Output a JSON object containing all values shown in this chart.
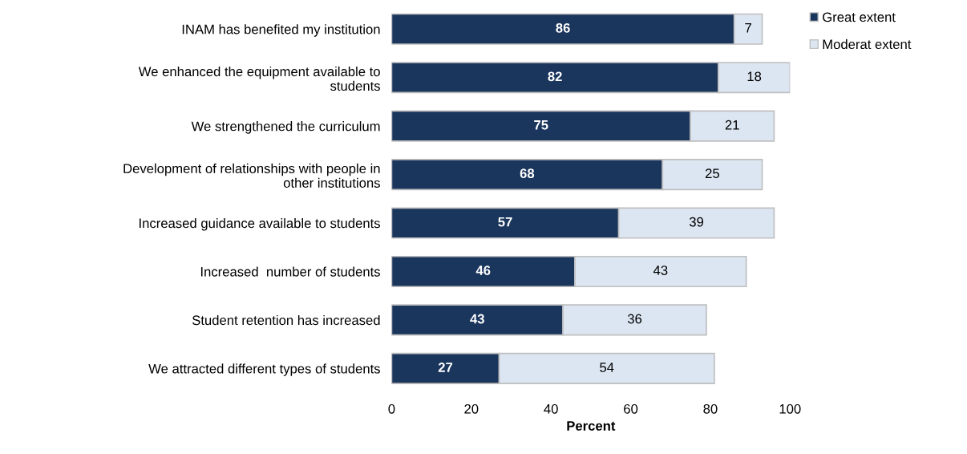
{
  "chart_data": {
    "type": "bar",
    "orientation": "horizontal",
    "stacked": true,
    "xlabel": "Percent",
    "categories": [
      "INAM has benefited my institution",
      "We enhanced the equipment available to students",
      "We strengthened the curriculum",
      "Development of relationships with people in other institutions",
      "Increased guidance available to students",
      "Increased  number of students",
      "Student retention has increased",
      "We attracted different types of students"
    ],
    "series": [
      {
        "name": "Great extent",
        "color": "#1b365d",
        "values": [
          86,
          82,
          75,
          68,
          57,
          46,
          43,
          27
        ]
      },
      {
        "name": "Moderat extent",
        "color": "#dce6f2",
        "values": [
          7,
          18,
          21,
          25,
          39,
          43,
          36,
          54
        ]
      }
    ],
    "xlim": [
      0,
      100
    ],
    "xticks": [
      0,
      20,
      40,
      60,
      80,
      100
    ],
    "data_labels": true,
    "legend": "top right",
    "grid": false
  }
}
